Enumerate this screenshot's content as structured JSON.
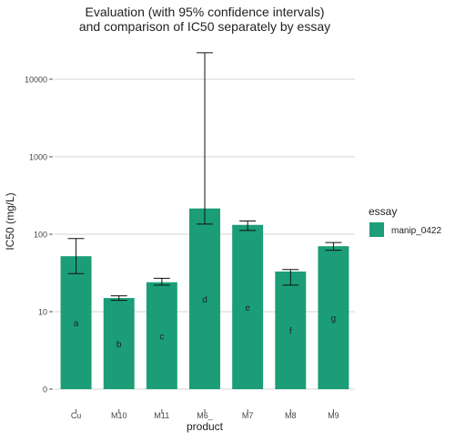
{
  "chart_data": {
    "type": "bar",
    "title": "Evaluation (with 95% confidence intervals)\nand comparison of IC50 separately by essay",
    "xlabel": "product",
    "ylabel": "IC50 (mg/L)",
    "y_scale": "pseudo-log",
    "y_ticks": [
      0,
      10,
      100,
      1000,
      10000
    ],
    "y_tick_labels": [
      "0",
      "10",
      "100",
      "1000",
      "10000"
    ],
    "ylim": [
      0,
      22000
    ],
    "grid": true,
    "legend_title": "essay",
    "legend_position": "right",
    "categories": [
      "Cu",
      "M10",
      "M11",
      "M6_",
      "M7",
      "M8",
      "M9"
    ],
    "series": [
      {
        "name": "manip_0422",
        "color": "#1b9e77",
        "values": [
          52,
          15,
          24,
          215,
          132,
          33,
          70
        ],
        "ci_low": [
          31,
          14,
          22,
          135,
          112,
          22,
          62
        ],
        "ci_high": [
          88,
          16,
          27,
          22000,
          148,
          35,
          78
        ],
        "group_labels": [
          "a",
          "b",
          "c",
          "d",
          "e",
          "f",
          "g"
        ]
      }
    ]
  }
}
